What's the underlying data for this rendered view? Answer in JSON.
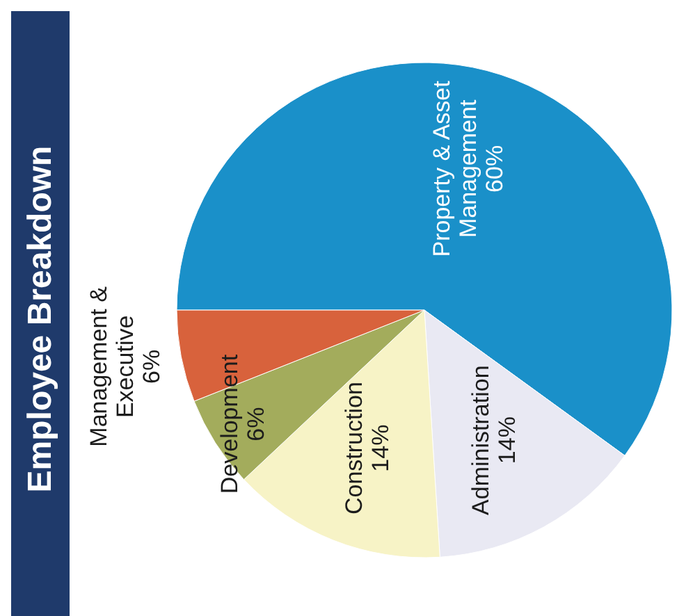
{
  "chart_data": {
    "type": "pie",
    "title": "Employee Breakdown",
    "categories": [
      "Property & Asset Management",
      "Administration",
      "Construction",
      "Development",
      "Management & Executive"
    ],
    "values": [
      60,
      14,
      14,
      6,
      6
    ],
    "value_labels": [
      "60%",
      "14%",
      "14%",
      "6%",
      "6%"
    ],
    "colors": [
      "#1a90c9",
      "#e9e9f3",
      "#f7f3c6",
      "#a3ac5c",
      "#d8623c"
    ]
  }
}
